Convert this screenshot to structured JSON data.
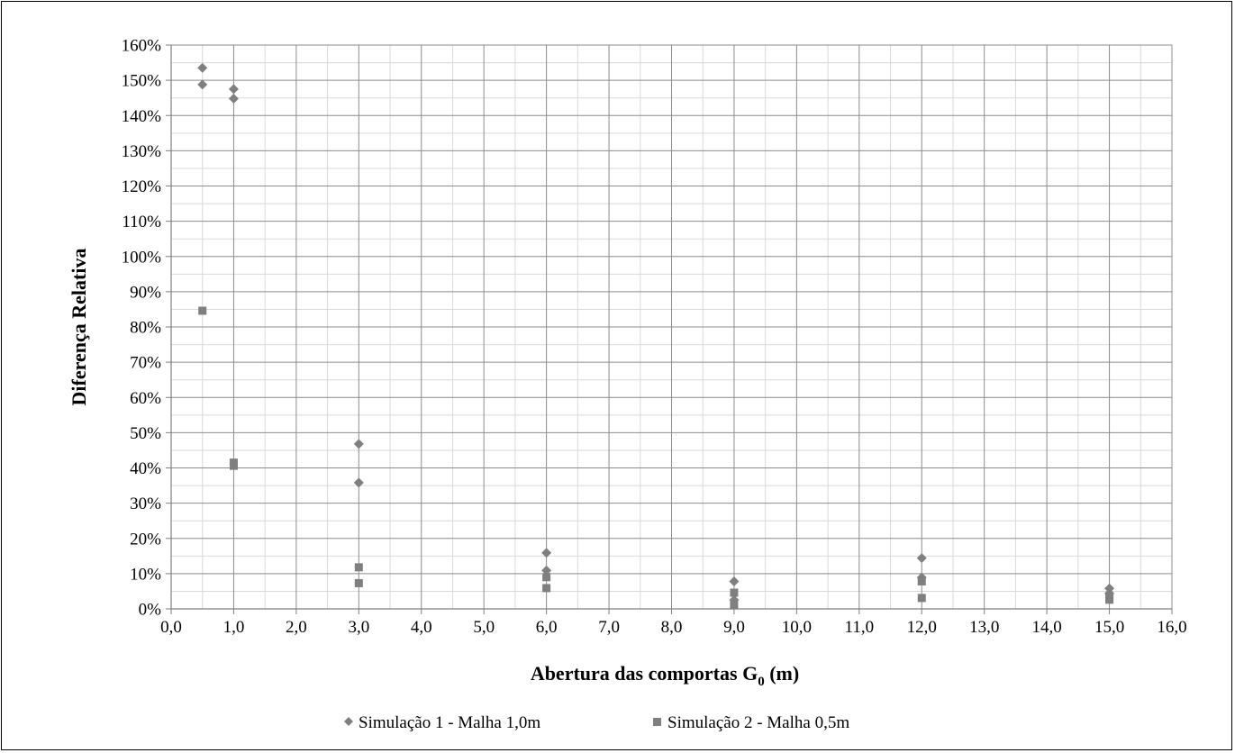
{
  "chart_data": {
    "type": "scatter",
    "title": "",
    "xlabel": "Abertura das comportas G",
    "xlabel_subscript": "0",
    "xlabel_suffix": " (m)",
    "ylabel": "Diferença Relativa",
    "xlim": [
      0,
      16
    ],
    "ylim": [
      0,
      160
    ],
    "x_tick_labels": [
      "0,0",
      "1,0",
      "2,0",
      "3,0",
      "4,0",
      "5,0",
      "6,0",
      "7,0",
      "8,0",
      "9,0",
      "10,0",
      "11,0",
      "12,0",
      "13,0",
      "14,0",
      "15,0",
      "16,0"
    ],
    "y_tick_labels": [
      "0%",
      "10%",
      "20%",
      "30%",
      "40%",
      "50%",
      "60%",
      "70%",
      "80%",
      "90%",
      "100%",
      "110%",
      "120%",
      "130%",
      "140%",
      "150%",
      "160%"
    ],
    "major_grid": true,
    "minor_grid": true,
    "legend_position": "bottom",
    "series": [
      {
        "name": "Simulação 1 - Malha 1,0m",
        "marker": "diamond",
        "color": "#7f7f7f",
        "points": [
          [
            0.5,
            153.5
          ],
          [
            0.5,
            148.8
          ],
          [
            1.0,
            147.5
          ],
          [
            1.0,
            144.8
          ],
          [
            3.0,
            46.8
          ],
          [
            3.0,
            35.8
          ],
          [
            6.0,
            15.9
          ],
          [
            6.0,
            10.9
          ],
          [
            9.0,
            7.8
          ],
          [
            9.0,
            2.5
          ],
          [
            12.0,
            14.4
          ],
          [
            12.0,
            8.9
          ],
          [
            15.0,
            5.8
          ],
          [
            15.0,
            4.4
          ]
        ]
      },
      {
        "name": "Simulação 2 - Malha 0,5m",
        "marker": "square",
        "color": "#7f7f7f",
        "points": [
          [
            0.5,
            84.6
          ],
          [
            1.0,
            41.5
          ],
          [
            1.0,
            40.6
          ],
          [
            3.0,
            11.8
          ],
          [
            3.0,
            7.3
          ],
          [
            6.0,
            9.0
          ],
          [
            6.0,
            5.9
          ],
          [
            9.0,
            4.6
          ],
          [
            9.0,
            1.0
          ],
          [
            12.0,
            7.8
          ],
          [
            12.0,
            3.1
          ],
          [
            15.0,
            3.6
          ],
          [
            15.0,
            2.6
          ]
        ]
      }
    ]
  }
}
